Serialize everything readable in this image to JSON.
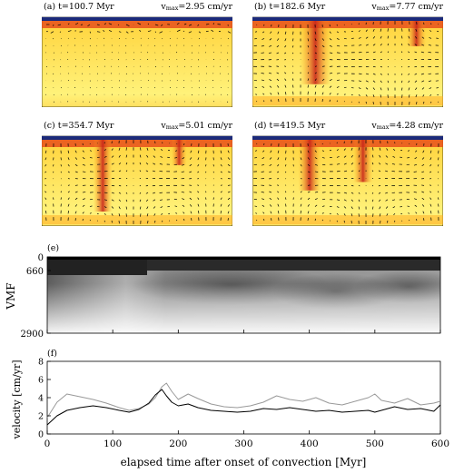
{
  "panels": [
    {
      "label": "(a) t=100.7 Myr",
      "vmax_prefix": "v",
      "vmax_sub": "max",
      "vmax_value": "=2.95 cm/yr"
    },
    {
      "label": "(b) t=182.6 Myr",
      "vmax_prefix": "v",
      "vmax_sub": "max",
      "vmax_value": "=7.77 cm/yr"
    },
    {
      "label": "(c) t=354.7 Myr",
      "vmax_prefix": "v",
      "vmax_sub": "max",
      "vmax_value": "=5.01 cm/yr"
    },
    {
      "label": "(d) t=419.5 Myr",
      "vmax_prefix": "v",
      "vmax_sub": "max",
      "vmax_value": "=4.28 cm/yr"
    }
  ],
  "chart_data": [
    {
      "type": "heatmap",
      "panel_label": "(e)",
      "ylabel": "VMF",
      "yticks": [
        "0",
        "660",
        "2900"
      ],
      "xticks": [
        "0",
        "100",
        "200",
        "300",
        "400",
        "500",
        "600"
      ],
      "xlim": [
        0,
        600
      ],
      "ylim": [
        0,
        2900
      ],
      "colors": {
        "high": "#1a1a1a",
        "low": "#ffffff"
      }
    },
    {
      "type": "line",
      "panel_label": "(f)",
      "ylabel": "velocity [cm/yr]",
      "xlabel": "elapsed time after onset of convection [Myr]",
      "xticks": [
        "0",
        "100",
        "200",
        "300",
        "400",
        "500",
        "600"
      ],
      "yticks": [
        "0",
        "2",
        "4",
        "6",
        "8"
      ],
      "xlim": [
        0,
        600
      ],
      "ylim": [
        0,
        8
      ],
      "series": [
        {
          "color": "#000000",
          "x": [
            0,
            15,
            30,
            50,
            70,
            90,
            110,
            125,
            140,
            155,
            165,
            175,
            182,
            190,
            200,
            215,
            230,
            250,
            270,
            290,
            310,
            330,
            350,
            370,
            390,
            410,
            430,
            450,
            470,
            490,
            500,
            510,
            530,
            550,
            570,
            590,
            600
          ],
          "values": [
            1.0,
            2.0,
            2.6,
            2.9,
            3.1,
            2.9,
            2.6,
            2.4,
            2.7,
            3.4,
            4.3,
            4.9,
            4.2,
            3.5,
            3.1,
            3.3,
            2.9,
            2.6,
            2.5,
            2.4,
            2.5,
            2.8,
            2.7,
            2.9,
            2.7,
            2.5,
            2.6,
            2.4,
            2.5,
            2.6,
            2.4,
            2.6,
            3.0,
            2.7,
            2.8,
            2.5,
            3.2
          ]
        },
        {
          "color": "#999999",
          "x": [
            0,
            15,
            30,
            50,
            70,
            90,
            110,
            125,
            140,
            155,
            165,
            175,
            182,
            190,
            200,
            215,
            230,
            250,
            270,
            290,
            310,
            330,
            350,
            370,
            390,
            410,
            430,
            450,
            470,
            490,
            500,
            510,
            530,
            550,
            570,
            590,
            600
          ],
          "values": [
            1.8,
            3.5,
            4.4,
            4.1,
            3.8,
            3.4,
            2.9,
            2.6,
            2.8,
            3.3,
            4.0,
            5.2,
            5.6,
            4.7,
            3.8,
            4.4,
            3.9,
            3.3,
            3.0,
            2.9,
            3.1,
            3.5,
            4.2,
            3.8,
            3.6,
            4.0,
            3.4,
            3.2,
            3.6,
            4.0,
            4.4,
            3.7,
            3.4,
            3.9,
            3.2,
            3.4,
            3.6
          ]
        }
      ]
    }
  ]
}
